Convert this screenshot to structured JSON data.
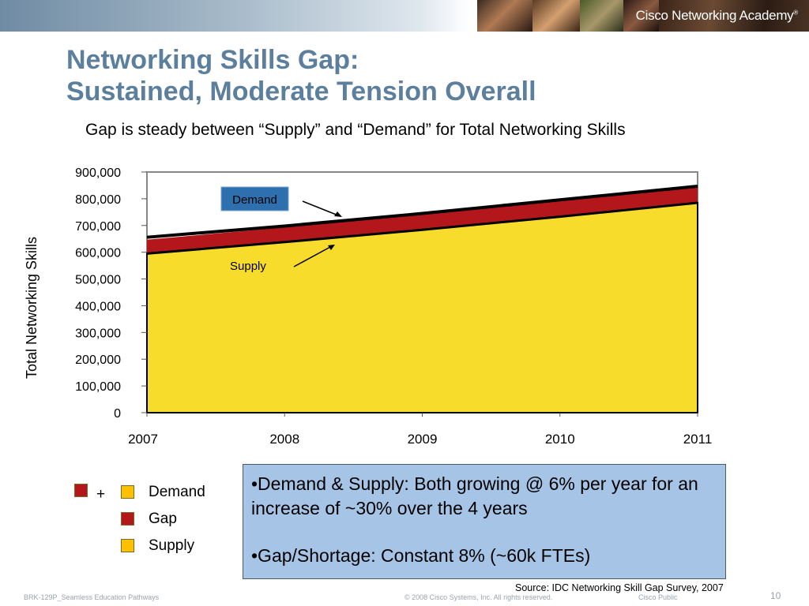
{
  "header": {
    "brand": "Cisco Networking Academy"
  },
  "slide": {
    "title_line1": "Networking Skills Gap:",
    "title_line2": "Sustained, Moderate Tension Overall",
    "subtitle": "Gap is steady between “Supply” and “Demand” for Total Networking Skills"
  },
  "chart_data": {
    "type": "area",
    "x": [
      "2007",
      "2008",
      "2009",
      "2010",
      "2011"
    ],
    "ylabel": "Total Networking Skills",
    "ylim": [
      0,
      900000
    ],
    "yticks": [
      "0",
      "100,000",
      "200,000",
      "300,000",
      "400,000",
      "500,000",
      "600,000",
      "700,000",
      "800,000",
      "900,000"
    ],
    "ytick_values": [
      0,
      100000,
      200000,
      300000,
      400000,
      500000,
      600000,
      700000,
      800000,
      900000
    ],
    "series": [
      {
        "name": "Supply",
        "values": [
          595000,
          638000,
          684000,
          733000,
          785000
        ],
        "color": "#f7dc2b"
      },
      {
        "name": "Gap",
        "values": [
          52000,
          55000,
          59000,
          63000,
          57000
        ],
        "color": "#b3171c"
      },
      {
        "name": "Demand",
        "values": [
          656000,
          698000,
          745000,
          796000,
          847000
        ],
        "color": "#000000"
      }
    ],
    "annotations": {
      "demand_label": "Demand",
      "supply_label": "Supply"
    },
    "grid": false
  },
  "legend": {
    "plus": "+",
    "items": [
      {
        "label": "Demand",
        "color": "#b3171c",
        "color2": "#ffc000"
      },
      {
        "label": "Gap",
        "color": "#b3171c"
      },
      {
        "label": "Supply",
        "color": "#ffc000"
      }
    ]
  },
  "info": {
    "bullet1": "•Demand & Supply: Both growing @ 6% per year for an increase of ~30% over the 4 years",
    "bullet2": "•Gap/Shortage: Constant 8% (~60k FTEs)"
  },
  "source": "Source: IDC Networking Skill Gap Survey, 2007",
  "footer": {
    "session": "BRK-129P_Seamless Education Pathways",
    "copyright": "© 2008 Cisco Systems, Inc. All rights reserved.",
    "classification": "Cisco Public",
    "page": "10"
  }
}
